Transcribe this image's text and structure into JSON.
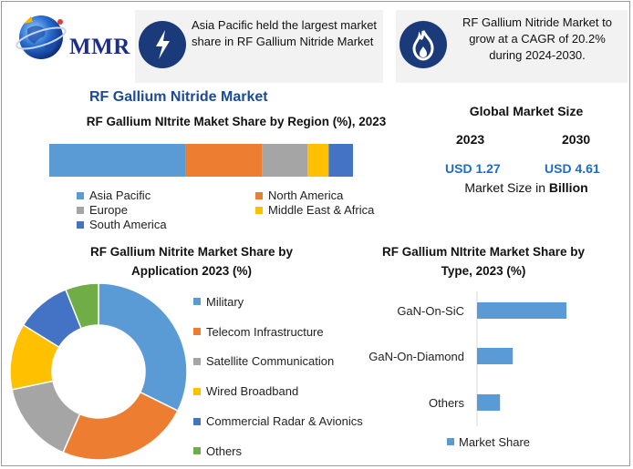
{
  "brand": {
    "logo_text": "MMR"
  },
  "banners": [
    {
      "icon": "lightning-icon",
      "text": "Asia Pacific held the largest market share in RF Gallium Nitride Market"
    },
    {
      "icon": "flame-icon",
      "text": "RF Gallium Nitride Market to grow at a CAGR of 20.2% during 2024-2030."
    }
  ],
  "title": "RF Gallium Nitride Market",
  "market_size": {
    "heading": "Global Market Size",
    "year_a": "2023",
    "year_b": "2030",
    "value_a": "USD 1.27",
    "value_b": "USD 4.61",
    "unit_prefix": "Market Size in ",
    "unit_bold": "Billion"
  },
  "colors": {
    "blue": "#5b9bd5",
    "orange": "#ed7d31",
    "gray": "#a5a5a5",
    "yellow": "#ffc000",
    "darkblue": "#4472c4",
    "green": "#70ad47",
    "banner_icon_bg": "#1b3a7a",
    "title_blue": "#1a4a9c",
    "usd_blue": "#1f6cc8"
  },
  "chart_data": [
    {
      "type": "bar",
      "orientation": "horizontal-stacked",
      "title": "RF Gallium NItrite Maket Share by Region (%), 2023",
      "series": [
        {
          "name": "Asia Pacific",
          "value": 45,
          "color": "#5b9bd5"
        },
        {
          "name": "North America",
          "value": 25,
          "color": "#ed7d31"
        },
        {
          "name": "Europe",
          "value": 15,
          "color": "#a5a5a5"
        },
        {
          "name": "Middle East & Africa",
          "value": 7,
          "color": "#ffc000"
        },
        {
          "name": "South America",
          "value": 8,
          "color": "#4472c4"
        }
      ],
      "legend_position": "bottom"
    },
    {
      "type": "pie",
      "style": "donut",
      "title": "RF Gallium Nitrite Market Share by Application 2023 (%)",
      "categories": [
        "Military",
        "Telecom Infrastructure",
        "Satellite Communication",
        "Wired Broadband",
        "Commercial Radar & Avionics",
        "Others"
      ],
      "values": [
        32,
        24,
        15,
        12,
        10,
        6
      ],
      "colors": [
        "#5b9bd5",
        "#ed7d31",
        "#a5a5a5",
        "#ffc000",
        "#4472c4",
        "#70ad47"
      ],
      "legend_position": "right"
    },
    {
      "type": "bar",
      "orientation": "horizontal",
      "title": "RF Gallium NItrite Market Share by Type, 2023 (%)",
      "categories": [
        "GaN-On-SiC",
        "GaN-On-Diamond",
        "Others"
      ],
      "series": [
        {
          "name": "Market Share",
          "values": [
            70,
            28,
            18
          ],
          "color": "#5b9bd5"
        }
      ],
      "legend_position": "bottom"
    }
  ]
}
